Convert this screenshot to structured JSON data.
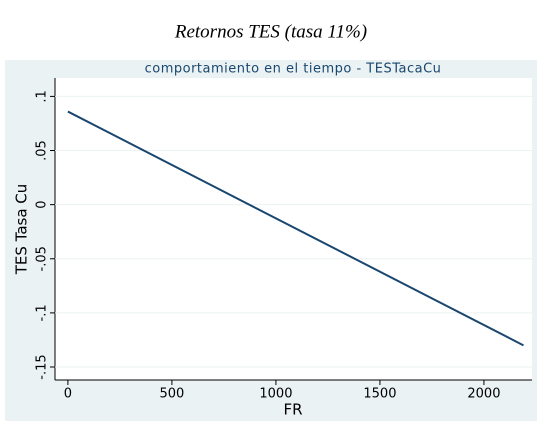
{
  "chart_data": {
    "type": "line",
    "title": "Retornos TES (tasa 11%)",
    "subtitle": "comportamiento en el tiempo - TESTacaCu",
    "x_label": "FR",
    "y_label": "TES Tasa Cu",
    "x": [
      0,
      2190
    ],
    "series": [
      {
        "name": "TESTacaCu",
        "color": "#1a476f",
        "values": [
          0.086,
          -0.13
        ]
      }
    ],
    "xlim": [
      -62,
      2231
    ],
    "xticks": [
      0,
      500,
      1000,
      1500,
      2000
    ],
    "ylim": [
      -0.162,
      0.117
    ],
    "yticks": [
      {
        "value": -0.15,
        "label": "-.15"
      },
      {
        "value": -0.1,
        "label": "-.1"
      },
      {
        "value": -0.05,
        "label": "-.05"
      },
      0,
      {
        "value": 0.05,
        "label": ".05"
      },
      {
        "value": 0.1,
        "label": ".1"
      }
    ],
    "grid": true
  }
}
